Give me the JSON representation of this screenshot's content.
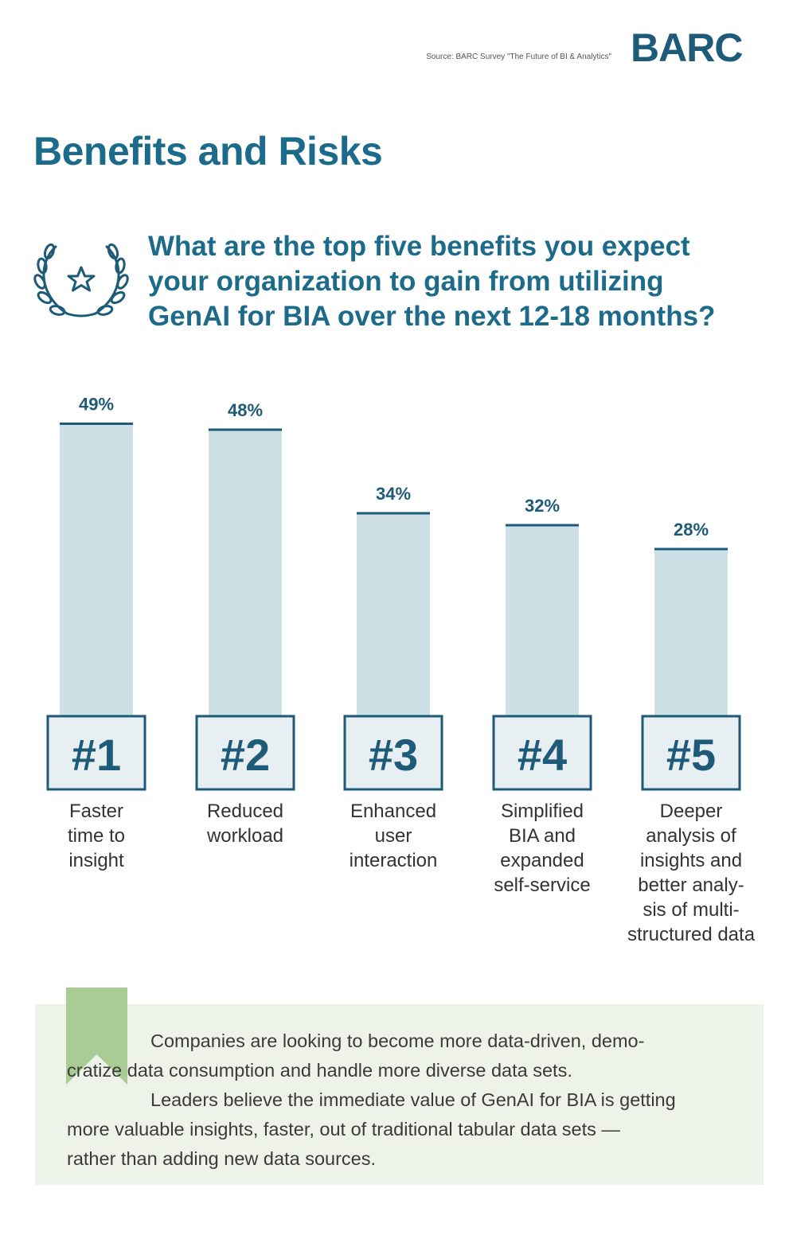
{
  "header": {
    "source": "Source: BARC Survey \"The Future of BI & Analytics\"",
    "logo": "BARC"
  },
  "page_title": "Benefits and Risks",
  "question_lines": [
    "What are the top five benefits you expect",
    "your organization to gain from utilizing",
    "GenAI for BIA over the next 12-18 months?"
  ],
  "icons": {
    "laurel": "laurel-star-icon",
    "bookmark": "bookmark-icon"
  },
  "colors": {
    "primary": "#1d5b78",
    "title": "#1d6b8b",
    "bar": "#cde0e6",
    "bookmark": "#a9cc94",
    "callout_bg": "#eef3ea"
  },
  "chart_data": {
    "type": "bar",
    "categories": [
      "#1",
      "#2",
      "#3",
      "#4",
      "#5"
    ],
    "values": [
      49,
      48,
      34,
      32,
      28
    ],
    "value_labels": [
      "49%",
      "48%",
      "34%",
      "32%",
      "28%"
    ],
    "descriptions": [
      [
        "Faster",
        "time to",
        "insight"
      ],
      [
        "Reduced",
        "workload"
      ],
      [
        "Enhanced",
        "user",
        "interaction"
      ],
      [
        "Simplified",
        "BIA and",
        "expanded",
        "self-service"
      ],
      [
        "Deeper",
        "analysis of",
        "insights and",
        "better analy-",
        "sis of multi-",
        "structured data"
      ]
    ],
    "unit": "%",
    "ylim": [
      0,
      49
    ],
    "grid": false,
    "legend": "none"
  },
  "callout": {
    "first_line": "Companies are looking to become more data-driven, demo-",
    "rest": [
      "cratize data consumption and handle more diverse data sets.",
      "Leaders believe the immediate value of GenAI for BIA is getting",
      "more valuable insights, faster, out of traditional tabular data sets —",
      "rather than adding new data sources."
    ]
  }
}
